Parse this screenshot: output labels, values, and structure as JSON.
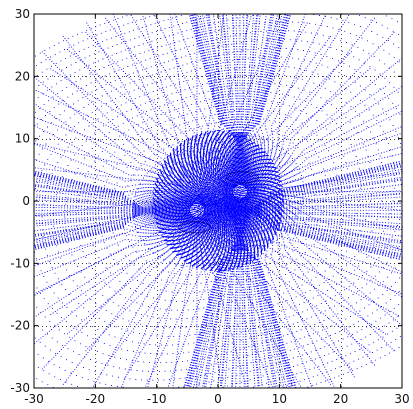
{
  "chart_data": {
    "type": "scatter",
    "title": "",
    "xlabel": "",
    "ylabel": "",
    "xlim": [
      -30,
      30
    ],
    "ylim": [
      -30,
      30
    ],
    "x_ticks": [
      -30,
      -20,
      -10,
      0,
      10,
      20,
      30
    ],
    "y_ticks": [
      -30,
      -20,
      -10,
      0,
      10,
      20,
      30
    ],
    "x_tick_labels": [
      "-30",
      "-20",
      "-10",
      "0",
      "10",
      "20",
      "30"
    ],
    "y_tick_labels": [
      "-30",
      "-20",
      "-10",
      "0",
      "10",
      "20",
      "30"
    ],
    "grid": true,
    "grid_style": "dotted",
    "marker": "dot",
    "series": [
      {
        "color": "#0000ff",
        "description_points_sample": [
          {
            "x": 0,
            "y": 0
          },
          {
            "x": 5,
            "y": 0
          },
          {
            "x": -5,
            "y": 0
          },
          {
            "x": 0,
            "y": 8
          },
          {
            "x": 0,
            "y": -8
          },
          {
            "x": 3,
            "y": 3
          },
          {
            "x": -3,
            "y": -3
          },
          {
            "x": 15,
            "y": 10
          },
          {
            "x": -15,
            "y": -10
          },
          {
            "x": 20,
            "y": -15
          },
          {
            "x": -20,
            "y": 15
          },
          {
            "x": 25,
            "y": 25
          },
          {
            "x": -25,
            "y": -25
          }
        ]
      }
    ]
  }
}
